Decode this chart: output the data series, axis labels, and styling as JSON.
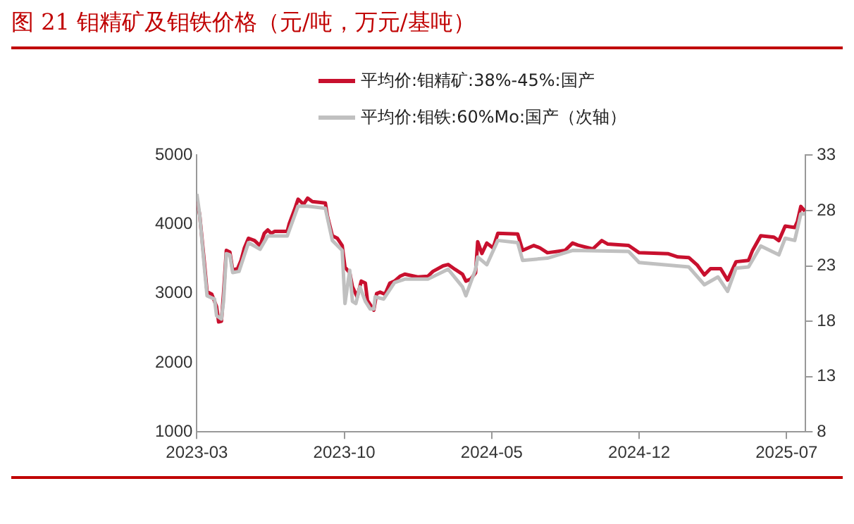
{
  "chart_data": {
    "type": "line",
    "title": "图 21 钼精矿及钼铁价格（元/吨，万元/基吨）",
    "xlim": [
      "2023-03-01",
      "2025-07-29"
    ],
    "xticks": [
      "2023-03",
      "2023-10",
      "2024-05",
      "2024-12",
      "2025-07"
    ],
    "ylim": [
      1000,
      5000
    ],
    "yticks": [
      1000,
      2000,
      3000,
      4000,
      5000
    ],
    "y2lim": [
      8,
      33
    ],
    "y2ticks": [
      8,
      13,
      18,
      23,
      28,
      33
    ],
    "grid": false,
    "legend": "top",
    "marker": "none",
    "line_style": "solid",
    "series": [
      {
        "name": "平均价:钼精矿:38%-45%:国产",
        "color": "#c8102e",
        "x": [
          "2023-03-01",
          "2023-03-05",
          "2023-03-12",
          "2023-03-16",
          "2023-03-23",
          "2023-03-30",
          "2023-04-02",
          "2023-04-06",
          "2023-04-09",
          "2023-04-13",
          "2023-04-18",
          "2023-04-22",
          "2023-04-29",
          "2023-05-04",
          "2023-05-09",
          "2023-05-15",
          "2023-05-24",
          "2023-06-01",
          "2023-06-07",
          "2023-06-12",
          "2023-06-17",
          "2023-06-22",
          "2023-07-10",
          "2023-07-13",
          "2023-07-21",
          "2023-07-26",
          "2023-08-03",
          "2023-08-09",
          "2023-08-16",
          "2023-09-04",
          "2023-09-07",
          "2023-09-14",
          "2023-09-21",
          "2023-09-28",
          "2023-10-02",
          "2023-10-09",
          "2023-10-13",
          "2023-10-20",
          "2023-10-26",
          "2023-11-01",
          "2023-11-04",
          "2023-11-13",
          "2023-11-17",
          "2023-11-22",
          "2023-11-29",
          "2023-12-06",
          "2023-12-13",
          "2023-12-21",
          "2023-12-28",
          "2024-01-16",
          "2024-01-31",
          "2024-02-07",
          "2024-02-21",
          "2024-02-28",
          "2024-03-09",
          "2024-03-20",
          "2024-03-25",
          "2024-04-01",
          "2024-04-08",
          "2024-04-11",
          "2024-04-17",
          "2024-04-24",
          "2024-05-03",
          "2024-05-10",
          "2024-06-08",
          "2024-06-15",
          "2024-07-01",
          "2024-07-10",
          "2024-07-21",
          "2024-08-16",
          "2024-08-27",
          "2024-09-04",
          "2024-09-25",
          "2024-10-08",
          "2024-10-17",
          "2024-11-16",
          "2024-12-01",
          "2025-01-13",
          "2025-01-27",
          "2025-02-11",
          "2025-02-22",
          "2025-03-04",
          "2025-03-13",
          "2025-03-28",
          "2025-04-07",
          "2025-04-19",
          "2025-05-07",
          "2025-05-13",
          "2025-05-25",
          "2025-06-13",
          "2025-06-20",
          "2025-06-29",
          "2025-07-13",
          "2025-07-17",
          "2025-07-22",
          "2025-07-28"
        ],
        "values": [
          4330,
          4150,
          3450,
          3025,
          2990,
          2810,
          2590,
          2600,
          3000,
          3625,
          3600,
          3340,
          3360,
          3480,
          3660,
          3800,
          3765,
          3690,
          3870,
          3920,
          3870,
          3900,
          3900,
          4010,
          4220,
          4365,
          4290,
          4380,
          4330,
          4310,
          4120,
          3835,
          3800,
          3695,
          3380,
          3300,
          3100,
          2950,
          3180,
          3150,
          2900,
          2760,
          3000,
          3020,
          2990,
          3150,
          3180,
          3250,
          3280,
          3240,
          3250,
          3320,
          3400,
          3420,
          3350,
          3280,
          3180,
          3210,
          3300,
          3750,
          3580,
          3730,
          3660,
          3870,
          3860,
          3625,
          3695,
          3660,
          3590,
          3625,
          3730,
          3700,
          3645,
          3765,
          3715,
          3695,
          3590,
          3575,
          3530,
          3520,
          3415,
          3270,
          3360,
          3360,
          3195,
          3460,
          3480,
          3625,
          3835,
          3815,
          3765,
          3975,
          3955,
          4045,
          4260,
          4190
        ]
      },
      {
        "name": "平均价:钼铁:60%Mo:国产（次轴）",
        "color": "#c0c0c0",
        "axis": "y2",
        "x": [
          "2023-03-01",
          "2023-03-05",
          "2023-03-12",
          "2023-03-16",
          "2023-03-27",
          "2023-03-30",
          "2023-04-06",
          "2023-04-09",
          "2023-04-13",
          "2023-04-18",
          "2023-04-22",
          "2023-05-01",
          "2023-05-15",
          "2023-06-01",
          "2023-06-12",
          "2023-07-10",
          "2023-07-26",
          "2023-08-09",
          "2023-09-04",
          "2023-09-14",
          "2023-09-28",
          "2023-10-02",
          "2023-10-09",
          "2023-10-13",
          "2023-10-18",
          "2023-10-24",
          "2023-11-01",
          "2023-11-08",
          "2023-11-13",
          "2023-11-15",
          "2023-11-27",
          "2023-12-13",
          "2023-12-28",
          "2024-01-31",
          "2024-02-28",
          "2024-03-20",
          "2024-03-25",
          "2024-04-08",
          "2024-04-11",
          "2024-04-24",
          "2024-05-10",
          "2024-06-08",
          "2024-06-15",
          "2024-07-21",
          "2024-08-27",
          "2024-11-16",
          "2024-12-01",
          "2025-02-11",
          "2025-03-04",
          "2025-03-24",
          "2025-04-07",
          "2025-04-19",
          "2025-05-07",
          "2025-05-25",
          "2025-06-20",
          "2025-06-29",
          "2025-07-13",
          "2025-07-22",
          "2025-07-28"
        ],
        "values": [
          29.5,
          27.7,
          22.9,
          20.3,
          20.0,
          18.5,
          18.2,
          19.8,
          24.1,
          24.0,
          22.4,
          22.5,
          25.1,
          24.5,
          25.7,
          25.7,
          28.4,
          28.4,
          28.2,
          25.3,
          24.4,
          19.6,
          22.6,
          19.8,
          19.6,
          21.1,
          19.8,
          19.1,
          19.1,
          20.2,
          20.0,
          21.5,
          21.8,
          21.8,
          22.7,
          21.1,
          20.3,
          22.7,
          23.8,
          23.1,
          25.3,
          25.1,
          23.5,
          23.7,
          24.4,
          24.3,
          23.3,
          22.9,
          21.3,
          22.0,
          20.7,
          22.8,
          22.9,
          24.8,
          24.0,
          25.5,
          25.3,
          27.7,
          27.7
        ]
      }
    ]
  }
}
